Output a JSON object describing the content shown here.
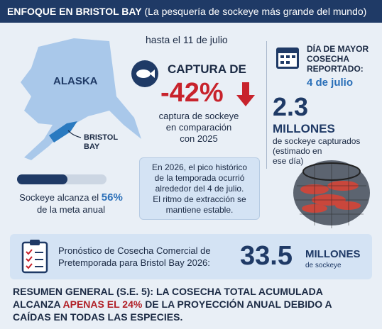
{
  "header": {
    "title": "ENFOQUE EN BRISTOL BAY",
    "subtitle": "(La pesquería de sockeye más grande del mundo)"
  },
  "map": {
    "region": "ALASKA",
    "bay_label": [
      "BRISTOL",
      "BAY"
    ]
  },
  "catch": {
    "date": "hasta el 11 de julio",
    "heading": "CAPTURA DE",
    "change": "-42%",
    "description": [
      "captura de sockeye",
      "en comparación",
      "con 2025"
    ]
  },
  "peak": {
    "heading": [
      "DÍA DE MAYOR",
      "COSECHA",
      "REPORTADO:"
    ],
    "date": "4 de julio",
    "amount": "2.3",
    "unit": "MILLONES",
    "description": [
      "de sockeye capturados",
      "(estimado en",
      "ese día)"
    ]
  },
  "progress": {
    "text": "Sockeye alcanza el",
    "value": 56,
    "value_label": "56%",
    "text_after": "de la meta anual"
  },
  "note": {
    "lines": [
      "En 2026, el pico histórico",
      "de la temporada ocurrió",
      "alrededor del 4 de julio.",
      "El ritmo de extracción se",
      "mantiene estable."
    ]
  },
  "forecast": {
    "lines": [
      "Pronóstico de Cosecha Comercial de",
      "Pretemporada para Bristol Bay 2026:"
    ],
    "amount": "33.5",
    "unit": "MILLONES",
    "unit_sub": "de sockeye"
  },
  "summary": {
    "before": "RESUMEN GENERAL (S.E. 5): LA COSECHA TOTAL ACUMULADA ALCANZA",
    "highlight": "APENAS EL 24%",
    "after": "DE LA PROYECCIÓN ANUAL DEBIDO A CAÍDAS EN TODAS LAS ESPECIES."
  }
}
